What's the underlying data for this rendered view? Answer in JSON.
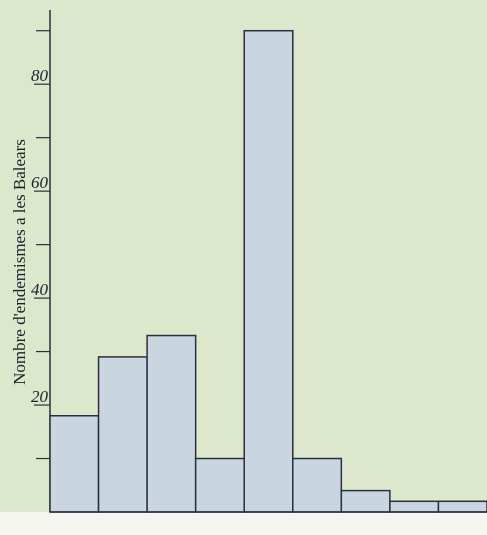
{
  "chart_data": {
    "type": "bar",
    "y_label": "Nombre d'endemismes a les Balears",
    "categories": [
      null,
      null,
      null,
      null,
      null,
      null,
      null,
      null,
      null
    ],
    "values": [
      18,
      29,
      33,
      10,
      90,
      10,
      4,
      2,
      2
    ],
    "color": "#c9d6e0",
    "ylim": [
      0,
      93.5
    ],
    "yticks": [
      20,
      40,
      60,
      80
    ],
    "minor_yticks": [
      10,
      30,
      50,
      70,
      90
    ]
  }
}
